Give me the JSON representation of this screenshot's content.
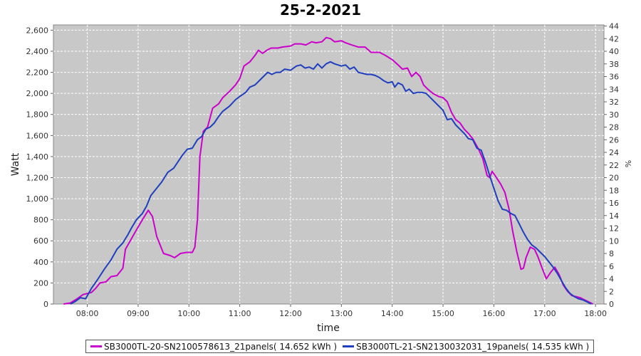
{
  "chart_data": {
    "type": "line",
    "title": "25-2-2021",
    "xlabel": "time",
    "ylabel": "Watt",
    "y2label": "%",
    "x_ticks": [
      "08:00",
      "09:00",
      "10:00",
      "11:00",
      "12:00",
      "13:00",
      "14:00",
      "15:00",
      "16:00",
      "17:00",
      "18:00"
    ],
    "xlim": [
      "07:20",
      "18:10"
    ],
    "ylim": [
      0,
      2650
    ],
    "y_ticks": [
      0,
      200,
      400,
      600,
      800,
      1000,
      1200,
      1400,
      1600,
      1800,
      2000,
      2200,
      2400,
      2600
    ],
    "y_tick_labels": [
      "0",
      "200",
      "400",
      "600",
      "800",
      "1,000",
      "1,200",
      "1,400",
      "1,600",
      "1,800",
      "2,000",
      "2,200",
      "2,400",
      "2,600"
    ],
    "y2lim": [
      0,
      44.17
    ],
    "y2_ticks": [
      0,
      2,
      4,
      6,
      8,
      10,
      12,
      14,
      16,
      18,
      20,
      22,
      24,
      26,
      28,
      30,
      32,
      34,
      36,
      38,
      40,
      42,
      44
    ],
    "grid": true,
    "legend_position": "bottom",
    "series": [
      {
        "name": "SB3000TL-20-SN2100578613_21panels( 14.652 kWh )",
        "color": "#cc00cc",
        "points": [
          [
            "07:32",
            0
          ],
          [
            "07:40",
            10
          ],
          [
            "07:48",
            50
          ],
          [
            "07:55",
            90
          ],
          [
            "08:05",
            110
          ],
          [
            "08:10",
            150
          ],
          [
            "08:15",
            200
          ],
          [
            "08:22",
            210
          ],
          [
            "08:28",
            260
          ],
          [
            "08:35",
            270
          ],
          [
            "08:42",
            340
          ],
          [
            "08:45",
            520
          ],
          [
            "08:50",
            590
          ],
          [
            "08:57",
            690
          ],
          [
            "09:05",
            800
          ],
          [
            "09:12",
            890
          ],
          [
            "09:17",
            830
          ],
          [
            "09:22",
            640
          ],
          [
            "09:30",
            480
          ],
          [
            "09:38",
            460
          ],
          [
            "09:43",
            440
          ],
          [
            "09:50",
            480
          ],
          [
            "09:57",
            490
          ],
          [
            "10:04",
            490
          ],
          [
            "10:07",
            540
          ],
          [
            "10:10",
            800
          ],
          [
            "10:13",
            1400
          ],
          [
            "10:17",
            1640
          ],
          [
            "10:22",
            1680
          ],
          [
            "10:28",
            1860
          ],
          [
            "10:35",
            1900
          ],
          [
            "10:40",
            1960
          ],
          [
            "10:48",
            2020
          ],
          [
            "10:55",
            2080
          ],
          [
            "11:00",
            2140
          ],
          [
            "11:05",
            2260
          ],
          [
            "11:12",
            2300
          ],
          [
            "11:18",
            2360
          ],
          [
            "11:22",
            2410
          ],
          [
            "11:27",
            2380
          ],
          [
            "11:32",
            2410
          ],
          [
            "11:37",
            2430
          ],
          [
            "11:45",
            2430
          ],
          [
            "11:50",
            2440
          ],
          [
            "12:00",
            2450
          ],
          [
            "12:05",
            2470
          ],
          [
            "12:12",
            2470
          ],
          [
            "12:18",
            2460
          ],
          [
            "12:25",
            2490
          ],
          [
            "12:30",
            2480
          ],
          [
            "12:37",
            2490
          ],
          [
            "12:42",
            2530
          ],
          [
            "12:47",
            2520
          ],
          [
            "12:52",
            2490
          ],
          [
            "13:00",
            2500
          ],
          [
            "13:05",
            2480
          ],
          [
            "13:12",
            2460
          ],
          [
            "13:20",
            2440
          ],
          [
            "13:28",
            2440
          ],
          [
            "13:35",
            2390
          ],
          [
            "13:45",
            2390
          ],
          [
            "13:52",
            2360
          ],
          [
            "14:00",
            2320
          ],
          [
            "14:07",
            2270
          ],
          [
            "14:12",
            2230
          ],
          [
            "14:18",
            2240
          ],
          [
            "14:23",
            2160
          ],
          [
            "14:28",
            2200
          ],
          [
            "14:33",
            2160
          ],
          [
            "14:37",
            2080
          ],
          [
            "14:42",
            2040
          ],
          [
            "14:48",
            2000
          ],
          [
            "14:55",
            1970
          ],
          [
            "15:00",
            1960
          ],
          [
            "15:05",
            1920
          ],
          [
            "15:10",
            1820
          ],
          [
            "15:15",
            1750
          ],
          [
            "15:20",
            1720
          ],
          [
            "15:25",
            1660
          ],
          [
            "15:30",
            1620
          ],
          [
            "15:35",
            1570
          ],
          [
            "15:42",
            1470
          ],
          [
            "15:47",
            1380
          ],
          [
            "15:52",
            1220
          ],
          [
            "15:55",
            1200
          ],
          [
            "15:58",
            1260
          ],
          [
            "16:03",
            1200
          ],
          [
            "16:08",
            1140
          ],
          [
            "16:13",
            1060
          ],
          [
            "16:18",
            900
          ],
          [
            "16:22",
            700
          ],
          [
            "16:27",
            500
          ],
          [
            "16:32",
            330
          ],
          [
            "16:35",
            340
          ],
          [
            "16:38",
            440
          ],
          [
            "16:43",
            540
          ],
          [
            "16:48",
            520
          ],
          [
            "16:52",
            450
          ],
          [
            "16:57",
            340
          ],
          [
            "17:02",
            240
          ],
          [
            "17:07",
            300
          ],
          [
            "17:12",
            350
          ],
          [
            "17:17",
            280
          ],
          [
            "17:22",
            180
          ],
          [
            "17:27",
            120
          ],
          [
            "17:32",
            80
          ],
          [
            "17:37",
            70
          ],
          [
            "17:42",
            60
          ],
          [
            "17:47",
            40
          ],
          [
            "17:52",
            20
          ],
          [
            "17:57",
            0
          ]
        ]
      },
      {
        "name": "SB3000TL-21-SN2130032031_19panels( 14.535 kWh )",
        "color": "#1f3fbf",
        "points": [
          [
            "07:40",
            0
          ],
          [
            "07:45",
            20
          ],
          [
            "07:52",
            60
          ],
          [
            "07:58",
            50
          ],
          [
            "08:05",
            150
          ],
          [
            "08:12",
            230
          ],
          [
            "08:20",
            330
          ],
          [
            "08:28",
            420
          ],
          [
            "08:35",
            520
          ],
          [
            "08:42",
            580
          ],
          [
            "08:48",
            660
          ],
          [
            "08:52",
            720
          ],
          [
            "08:58",
            800
          ],
          [
            "09:05",
            860
          ],
          [
            "09:10",
            930
          ],
          [
            "09:15",
            1030
          ],
          [
            "09:22",
            1100
          ],
          [
            "09:28",
            1160
          ],
          [
            "09:35",
            1250
          ],
          [
            "09:42",
            1290
          ],
          [
            "09:47",
            1350
          ],
          [
            "09:52",
            1410
          ],
          [
            "09:58",
            1470
          ],
          [
            "10:04",
            1480
          ],
          [
            "10:10",
            1560
          ],
          [
            "10:15",
            1590
          ],
          [
            "10:20",
            1660
          ],
          [
            "10:25",
            1680
          ],
          [
            "10:30",
            1720
          ],
          [
            "10:35",
            1780
          ],
          [
            "10:40",
            1830
          ],
          [
            "10:48",
            1880
          ],
          [
            "10:55",
            1940
          ],
          [
            "11:00",
            1970
          ],
          [
            "11:07",
            2010
          ],
          [
            "11:12",
            2060
          ],
          [
            "11:18",
            2080
          ],
          [
            "11:23",
            2120
          ],
          [
            "11:28",
            2160
          ],
          [
            "11:33",
            2200
          ],
          [
            "11:38",
            2180
          ],
          [
            "11:43",
            2200
          ],
          [
            "11:48",
            2200
          ],
          [
            "11:53",
            2230
          ],
          [
            "12:00",
            2220
          ],
          [
            "12:07",
            2260
          ],
          [
            "12:12",
            2270
          ],
          [
            "12:17",
            2240
          ],
          [
            "12:22",
            2250
          ],
          [
            "12:27",
            2230
          ],
          [
            "12:32",
            2280
          ],
          [
            "12:37",
            2240
          ],
          [
            "12:42",
            2280
          ],
          [
            "12:47",
            2300
          ],
          [
            "12:52",
            2280
          ],
          [
            "13:00",
            2260
          ],
          [
            "13:05",
            2270
          ],
          [
            "13:10",
            2230
          ],
          [
            "13:15",
            2250
          ],
          [
            "13:20",
            2200
          ],
          [
            "13:25",
            2190
          ],
          [
            "13:30",
            2180
          ],
          [
            "13:35",
            2180
          ],
          [
            "13:40",
            2170
          ],
          [
            "13:45",
            2150
          ],
          [
            "13:50",
            2120
          ],
          [
            "13:55",
            2100
          ],
          [
            "14:00",
            2110
          ],
          [
            "14:03",
            2060
          ],
          [
            "14:07",
            2100
          ],
          [
            "14:12",
            2080
          ],
          [
            "14:16",
            2020
          ],
          [
            "14:20",
            2040
          ],
          [
            "14:25",
            2000
          ],
          [
            "14:30",
            2010
          ],
          [
            "14:35",
            2010
          ],
          [
            "14:40",
            2000
          ],
          [
            "14:45",
            1960
          ],
          [
            "14:50",
            1920
          ],
          [
            "14:55",
            1880
          ],
          [
            "15:00",
            1840
          ],
          [
            "15:05",
            1750
          ],
          [
            "15:10",
            1760
          ],
          [
            "15:15",
            1700
          ],
          [
            "15:20",
            1660
          ],
          [
            "15:25",
            1620
          ],
          [
            "15:30",
            1570
          ],
          [
            "15:35",
            1560
          ],
          [
            "15:40",
            1480
          ],
          [
            "15:45",
            1460
          ],
          [
            "15:50",
            1350
          ],
          [
            "15:55",
            1220
          ],
          [
            "16:00",
            1100
          ],
          [
            "16:05",
            980
          ],
          [
            "16:10",
            900
          ],
          [
            "16:15",
            890
          ],
          [
            "16:20",
            860
          ],
          [
            "16:25",
            840
          ],
          [
            "16:30",
            760
          ],
          [
            "16:35",
            680
          ],
          [
            "16:40",
            610
          ],
          [
            "16:45",
            560
          ],
          [
            "16:50",
            530
          ],
          [
            "16:55",
            490
          ],
          [
            "17:00",
            450
          ],
          [
            "17:05",
            400
          ],
          [
            "17:10",
            350
          ],
          [
            "17:15",
            290
          ],
          [
            "17:20",
            220
          ],
          [
            "17:25",
            150
          ],
          [
            "17:30",
            100
          ],
          [
            "17:35",
            70
          ],
          [
            "17:40",
            50
          ],
          [
            "17:45",
            40
          ],
          [
            "17:50",
            20
          ],
          [
            "17:55",
            0
          ]
        ]
      }
    ]
  }
}
